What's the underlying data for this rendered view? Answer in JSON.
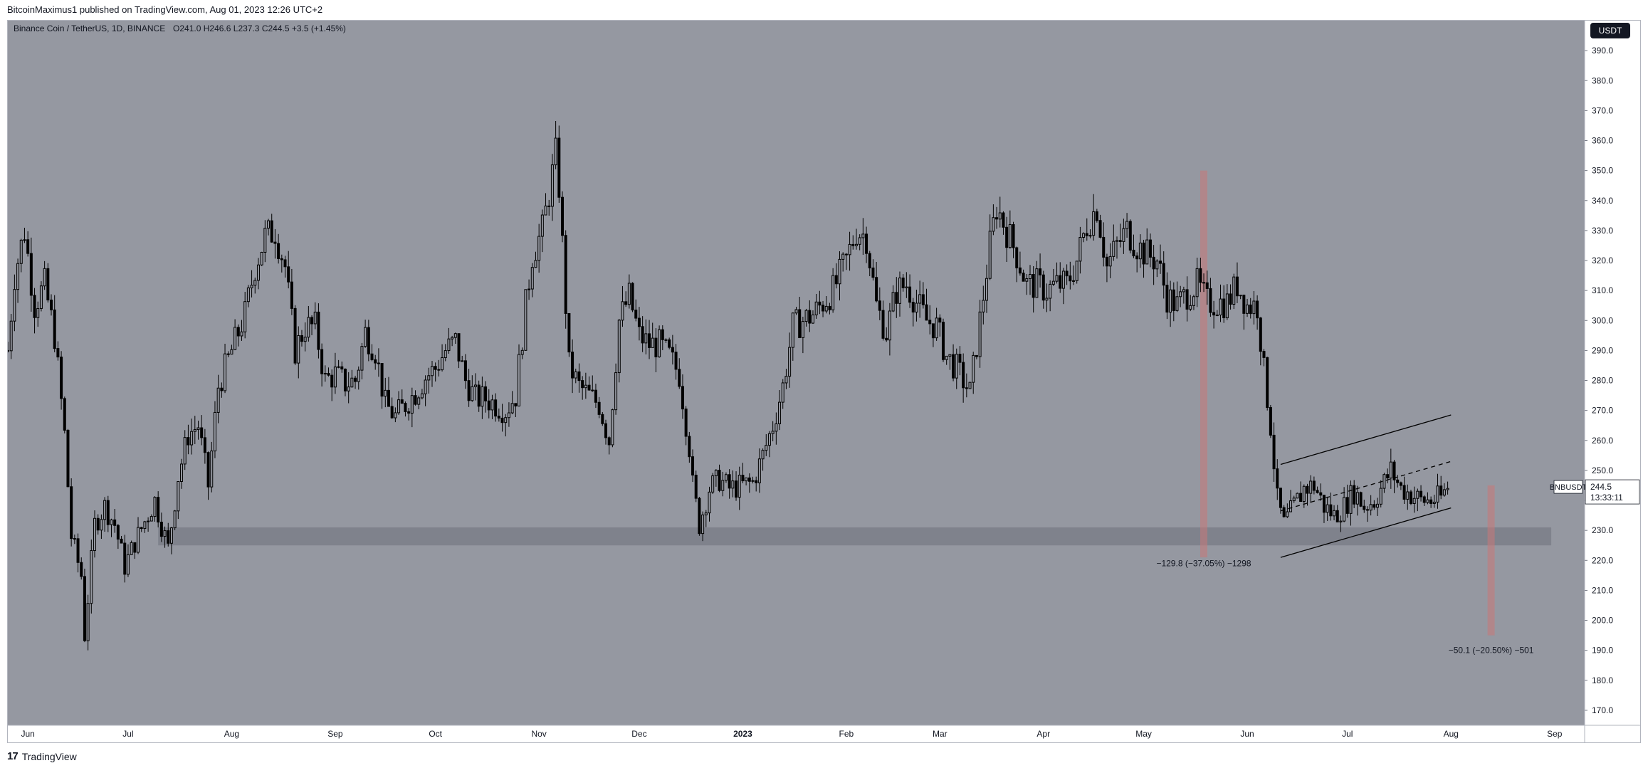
{
  "header": {
    "published_text": "BitcoinMaximus1 published on TradingView.com, Aug 01, 2023 12:26 UTC+2"
  },
  "footer": {
    "brand": "TradingView",
    "logo_glyph": "17"
  },
  "chart_data": {
    "type": "candlestick",
    "symbol_title": "Binance Coin / TetherUS, 1D, BINANCE",
    "ohlc_readout": {
      "open_label": "O",
      "open": "241.0",
      "high_label": "H",
      "high": "246.6",
      "low_label": "L",
      "low": "237.3",
      "close_label": "C",
      "close": "244.5",
      "change": "+3.5 (+1.45%)"
    },
    "currency_button": "USDT",
    "price_axis": {
      "ylim": [
        165,
        400
      ],
      "ticks": [
        "390.0",
        "380.0",
        "370.0",
        "360.0",
        "350.0",
        "340.0",
        "330.0",
        "320.0",
        "310.0",
        "300.0",
        "290.0",
        "280.0",
        "270.0",
        "260.0",
        "250.0",
        "240.0",
        "230.0",
        "220.0",
        "210.0",
        "200.0",
        "190.0",
        "180.0",
        "170.0"
      ]
    },
    "time_axis": {
      "start": "2022-05-26",
      "end": "2023-09-10",
      "labels": [
        {
          "text": "Jun",
          "date": "2022-06-01"
        },
        {
          "text": "Jul",
          "date": "2022-07-01"
        },
        {
          "text": "Aug",
          "date": "2022-08-01"
        },
        {
          "text": "Sep",
          "date": "2022-09-01"
        },
        {
          "text": "Oct",
          "date": "2022-10-01"
        },
        {
          "text": "Nov",
          "date": "2022-11-01"
        },
        {
          "text": "Dec",
          "date": "2022-12-01"
        },
        {
          "text": "2023",
          "date": "2023-01-01"
        },
        {
          "text": "Feb",
          "date": "2023-02-01"
        },
        {
          "text": "Mar",
          "date": "2023-03-01"
        },
        {
          "text": "Apr",
          "date": "2023-04-01"
        },
        {
          "text": "May",
          "date": "2023-05-01"
        },
        {
          "text": "Jun",
          "date": "2023-06-01"
        },
        {
          "text": "Jul",
          "date": "2023-07-01"
        },
        {
          "text": "Aug",
          "date": "2023-08-01"
        },
        {
          "text": "Sep",
          "date": "2023-09-01"
        }
      ]
    },
    "price_path": [
      [
        "2022-05-26",
        290
      ],
      [
        "2022-05-28",
        315
      ],
      [
        "2022-05-31",
        330
      ],
      [
        "2022-06-03",
        305
      ],
      [
        "2022-06-06",
        312
      ],
      [
        "2022-06-09",
        295
      ],
      [
        "2022-06-12",
        262
      ],
      [
        "2022-06-14",
        228
      ],
      [
        "2022-06-17",
        215
      ],
      [
        "2022-06-18",
        195
      ],
      [
        "2022-06-21",
        232
      ],
      [
        "2022-06-24",
        238
      ],
      [
        "2022-06-27",
        232
      ],
      [
        "2022-06-30",
        218
      ],
      [
        "2022-07-03",
        226
      ],
      [
        "2022-07-06",
        233
      ],
      [
        "2022-07-09",
        240
      ],
      [
        "2022-07-13",
        224
      ],
      [
        "2022-07-16",
        248
      ],
      [
        "2022-07-19",
        262
      ],
      [
        "2022-07-22",
        265
      ],
      [
        "2022-07-25",
        245
      ],
      [
        "2022-07-28",
        278
      ],
      [
        "2022-08-01",
        290
      ],
      [
        "2022-08-05",
        302
      ],
      [
        "2022-08-08",
        318
      ],
      [
        "2022-08-11",
        328
      ],
      [
        "2022-08-14",
        330
      ],
      [
        "2022-08-17",
        318
      ],
      [
        "2022-08-20",
        290
      ],
      [
        "2022-08-23",
        298
      ],
      [
        "2022-08-26",
        298
      ],
      [
        "2022-08-29",
        280
      ],
      [
        "2022-09-01",
        282
      ],
      [
        "2022-09-04",
        279
      ],
      [
        "2022-09-07",
        280
      ],
      [
        "2022-09-10",
        296
      ],
      [
        "2022-09-13",
        290
      ],
      [
        "2022-09-16",
        272
      ],
      [
        "2022-09-19",
        268
      ],
      [
        "2022-09-22",
        272
      ],
      [
        "2022-09-25",
        276
      ],
      [
        "2022-09-28",
        281
      ],
      [
        "2022-10-01",
        284
      ],
      [
        "2022-10-04",
        290
      ],
      [
        "2022-10-07",
        293
      ],
      [
        "2022-10-10",
        280
      ],
      [
        "2022-10-13",
        274
      ],
      [
        "2022-10-16",
        274
      ],
      [
        "2022-10-19",
        272
      ],
      [
        "2022-10-22",
        270
      ],
      [
        "2022-10-25",
        275
      ],
      [
        "2022-10-28",
        305
      ],
      [
        "2022-10-30",
        322
      ],
      [
        "2022-11-02",
        330
      ],
      [
        "2022-11-06",
        355
      ],
      [
        "2022-11-07",
        345
      ],
      [
        "2022-11-09",
        305
      ],
      [
        "2022-11-10",
        285
      ],
      [
        "2022-11-13",
        278
      ],
      [
        "2022-11-16",
        275
      ],
      [
        "2022-11-19",
        272
      ],
      [
        "2022-11-22",
        260
      ],
      [
        "2022-11-25",
        300
      ],
      [
        "2022-11-28",
        308
      ],
      [
        "2022-12-01",
        295
      ],
      [
        "2022-12-04",
        292
      ],
      [
        "2022-12-07",
        292
      ],
      [
        "2022-12-10",
        288
      ],
      [
        "2022-12-13",
        282
      ],
      [
        "2022-12-16",
        258
      ],
      [
        "2022-12-17",
        245
      ],
      [
        "2022-12-19",
        232
      ],
      [
        "2022-12-22",
        244
      ],
      [
        "2022-12-25",
        247
      ],
      [
        "2022-12-28",
        244
      ],
      [
        "2023-01-01",
        245
      ],
      [
        "2023-01-04",
        246
      ],
      [
        "2023-01-07",
        255
      ],
      [
        "2023-01-10",
        265
      ],
      [
        "2023-01-13",
        278
      ],
      [
        "2023-01-16",
        298
      ],
      [
        "2023-01-19",
        300
      ],
      [
        "2023-01-22",
        302
      ],
      [
        "2023-01-25",
        306
      ],
      [
        "2023-01-28",
        310
      ],
      [
        "2023-02-01",
        320
      ],
      [
        "2023-02-04",
        330
      ],
      [
        "2023-02-07",
        328
      ],
      [
        "2023-02-10",
        305
      ],
      [
        "2023-02-13",
        296
      ],
      [
        "2023-02-16",
        310
      ],
      [
        "2023-02-19",
        312
      ],
      [
        "2023-02-22",
        306
      ],
      [
        "2023-02-25",
        300
      ],
      [
        "2023-02-28",
        298
      ],
      [
        "2023-03-03",
        288
      ],
      [
        "2023-03-06",
        284
      ],
      [
        "2023-03-09",
        278
      ],
      [
        "2023-03-10",
        276
      ],
      [
        "2023-03-13",
        300
      ],
      [
        "2023-03-16",
        325
      ],
      [
        "2023-03-18",
        338
      ],
      [
        "2023-03-21",
        330
      ],
      [
        "2023-03-24",
        322
      ],
      [
        "2023-03-27",
        312
      ],
      [
        "2023-03-30",
        312
      ],
      [
        "2023-04-02",
        310
      ],
      [
        "2023-04-05",
        312
      ],
      [
        "2023-04-08",
        312
      ],
      [
        "2023-04-11",
        320
      ],
      [
        "2023-04-14",
        332
      ],
      [
        "2023-04-17",
        338
      ],
      [
        "2023-04-20",
        318
      ],
      [
        "2023-04-23",
        325
      ],
      [
        "2023-04-26",
        330
      ],
      [
        "2023-04-29",
        325
      ],
      [
        "2023-05-02",
        322
      ],
      [
        "2023-05-05",
        320
      ],
      [
        "2023-05-08",
        308
      ],
      [
        "2023-05-11",
        305
      ],
      [
        "2023-05-14",
        309
      ],
      [
        "2023-05-17",
        312
      ],
      [
        "2023-05-20",
        306
      ],
      [
        "2023-05-23",
        306
      ],
      [
        "2023-05-26",
        306
      ],
      [
        "2023-05-29",
        312
      ],
      [
        "2023-06-01",
        305
      ],
      [
        "2023-06-04",
        305
      ],
      [
        "2023-06-06",
        283
      ],
      [
        "2023-06-08",
        265
      ],
      [
        "2023-06-10",
        240
      ],
      [
        "2023-06-12",
        232
      ],
      [
        "2023-06-15",
        238
      ],
      [
        "2023-06-18",
        244
      ],
      [
        "2023-06-21",
        245
      ],
      [
        "2023-06-24",
        238
      ],
      [
        "2023-06-27",
        235
      ],
      [
        "2023-06-30",
        238
      ],
      [
        "2023-07-03",
        243
      ],
      [
        "2023-07-06",
        238
      ],
      [
        "2023-07-09",
        240
      ],
      [
        "2023-07-12",
        246
      ],
      [
        "2023-07-14",
        250
      ],
      [
        "2023-07-17",
        244
      ],
      [
        "2023-07-20",
        242
      ],
      [
        "2023-07-23",
        240
      ],
      [
        "2023-07-26",
        240
      ],
      [
        "2023-07-29",
        241
      ],
      [
        "2023-07-31",
        244.5
      ]
    ],
    "support_zone": {
      "from": 225,
      "to": 231,
      "start": "2022-07-10",
      "end": "2023-08-31"
    },
    "measures": [
      {
        "text": "−129.8 (−37.05%) −1298",
        "date": "2023-05-19",
        "top": 350,
        "bottom": 221,
        "label_price": 219
      },
      {
        "text": "−50.1 (−20.50%) −501",
        "date": "2023-08-13",
        "top": 245,
        "bottom": 195,
        "label_price": 190
      }
    ],
    "channel": {
      "upper": [
        [
          "2023-06-11",
          252
        ],
        [
          "2023-08-01",
          268.5
        ]
      ],
      "lower": [
        [
          "2023-06-11",
          221
        ],
        [
          "2023-08-01",
          237.5
        ]
      ],
      "middle": [
        [
          "2023-06-11",
          236.5
        ],
        [
          "2023-08-01",
          253
        ]
      ]
    },
    "last_price": {
      "symbol": "BNBUSDT",
      "price": "244.5",
      "countdown": "13:33:11",
      "value": 244.5
    },
    "colors": {
      "plot_bg": "#9598a1",
      "candle": "#000000",
      "support_zone": "#787b86",
      "measure_bar": "#c97979",
      "price_tag_bg": "#ffffff"
    }
  }
}
